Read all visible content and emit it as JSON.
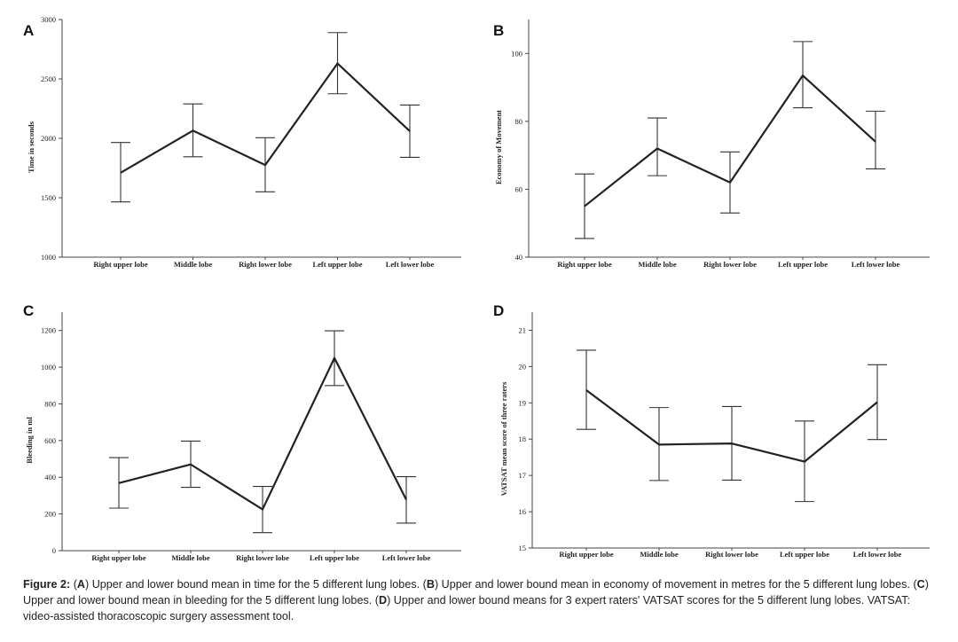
{
  "chart_data": [
    {
      "panel": "A",
      "type": "line",
      "title": "",
      "xlabel": "",
      "ylabel": "Time in seconds",
      "categories": [
        "Right upper lobe",
        "Middle lobe",
        "Right lower lobe",
        "Left upper lobe",
        "Left lower lobe"
      ],
      "values": [
        1710,
        2065,
        1775,
        2630,
        2060
      ],
      "lower": [
        1465,
        1845,
        1550,
        2375,
        1840
      ],
      "upper": [
        1965,
        2290,
        2005,
        2890,
        2280
      ],
      "ylim": [
        1000,
        3000
      ],
      "yticks": [
        1000,
        1500,
        2000,
        2500,
        3000
      ]
    },
    {
      "panel": "B",
      "type": "line",
      "title": "",
      "xlabel": "",
      "ylabel": "Economy of Movement",
      "categories": [
        "Right upper lobe",
        "Middle lobe",
        "Right lower lobe",
        "Left upper lobe",
        "Left lower lobe"
      ],
      "values": [
        55,
        72,
        62,
        93.5,
        74
      ],
      "lower": [
        45.5,
        64,
        53,
        84,
        66
      ],
      "upper": [
        64.5,
        81,
        71,
        103.5,
        83
      ],
      "ylim": [
        40,
        110
      ],
      "yticks": [
        40,
        60,
        80,
        100
      ]
    },
    {
      "panel": "C",
      "type": "line",
      "title": "",
      "xlabel": "",
      "ylabel": "Bleeding in ml",
      "categories": [
        "Right upper lobe",
        "Middle lobe",
        "Right lower lobe",
        "Left upper lobe",
        "Left lower lobe"
      ],
      "values": [
        368,
        470,
        225,
        1050,
        278
      ],
      "lower": [
        232,
        345,
        98,
        900,
        150
      ],
      "upper": [
        507,
        597,
        350,
        1198,
        403
      ],
      "ylim": [
        0,
        1300
      ],
      "yticks": [
        0,
        200,
        400,
        600,
        800,
        1000,
        1200
      ]
    },
    {
      "panel": "D",
      "type": "line",
      "title": "",
      "xlabel": "",
      "ylabel": "VATSAT mean score of three raters",
      "categories": [
        "Right upper lobe",
        "Middle lobe",
        "Right lower lobe",
        "Left upper lobe",
        "Left lower lobe"
      ],
      "values": [
        19.35,
        17.85,
        17.88,
        17.38,
        19.02
      ],
      "lower": [
        18.27,
        16.86,
        16.87,
        16.28,
        17.99
      ],
      "upper": [
        20.45,
        18.87,
        18.9,
        18.5,
        20.05
      ],
      "ylim": [
        15,
        21.5
      ],
      "yticks": [
        15,
        16,
        17,
        18,
        19,
        20,
        21
      ]
    }
  ],
  "caption": {
    "figure_label": "Figure 2:",
    "parts": [
      {
        "letter": "A",
        "text": " Upper and lower bound mean in time for the 5 different lung lobes. "
      },
      {
        "letter": "B",
        "text": " Upper and lower bound mean in economy of movement in metres for the 5 different lung lobes. "
      },
      {
        "letter": "C",
        "text": " Upper and lower bound mean in bleeding for the 5 different lung lobes. "
      },
      {
        "letter": "D",
        "text": " Upper and lower bound means for 3 expert raters' VATSAT scores for the 5 different lung lobes. VATSAT: video-assisted thoracoscopic surgery assessment tool."
      }
    ]
  }
}
